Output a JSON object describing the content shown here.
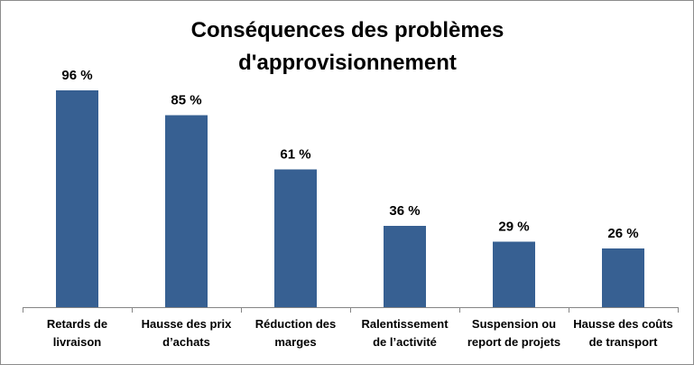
{
  "chart_data": {
    "type": "bar",
    "title_lines": [
      "Conséquences des problèmes",
      "d'approvisionnement"
    ],
    "categories": [
      [
        "Retards de",
        "livraison"
      ],
      [
        "Hausse des prix",
        "d’achats"
      ],
      [
        "Réduction des",
        "marges"
      ],
      [
        "Ralentissement",
        "de l’activité"
      ],
      [
        "Suspension ou",
        "report de projets"
      ],
      [
        "Hausse des coûts",
        "de transport"
      ]
    ],
    "values": [
      96,
      85,
      61,
      36,
      29,
      26
    ],
    "data_labels": [
      "96 %",
      "85 %",
      "61 %",
      "36 %",
      "29 %",
      "26 %"
    ],
    "unit": "%",
    "xlabel": "",
    "ylabel": "",
    "ylim": [
      0,
      100
    ],
    "grid": false,
    "legend": "none",
    "bar_color": "#376092"
  }
}
